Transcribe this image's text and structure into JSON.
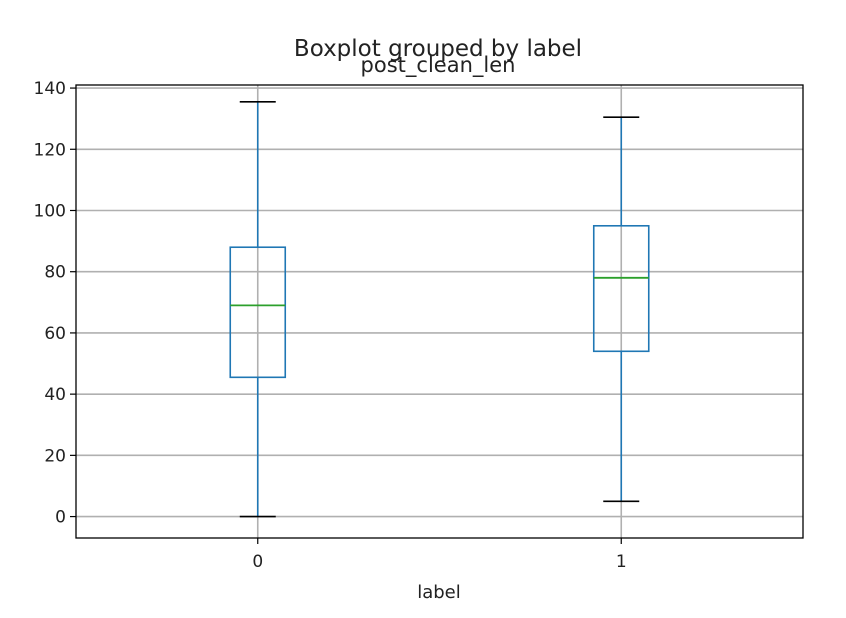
{
  "chart_data": {
    "type": "boxplot",
    "suptitle": "Boxplot grouped by label",
    "title": "post_clean_len",
    "xlabel": "label",
    "ylabel": "",
    "ylim": [
      -7,
      141
    ],
    "yticks": [
      0,
      20,
      40,
      60,
      80,
      100,
      120,
      140
    ],
    "categories": [
      "0",
      "1"
    ],
    "boxes": [
      {
        "category": "0",
        "whisker_low": 0,
        "q1": 45.5,
        "median": 69,
        "q3": 88,
        "whisker_high": 135.5
      },
      {
        "category": "1",
        "whisker_low": 5,
        "q1": 54,
        "median": 78,
        "q3": 95,
        "whisker_high": 130.5
      }
    ],
    "grid": true,
    "colors": {
      "box": "#1f77b4",
      "median": "#2ca02c",
      "cap": "#000000",
      "grid": "#b0b0b0"
    }
  }
}
